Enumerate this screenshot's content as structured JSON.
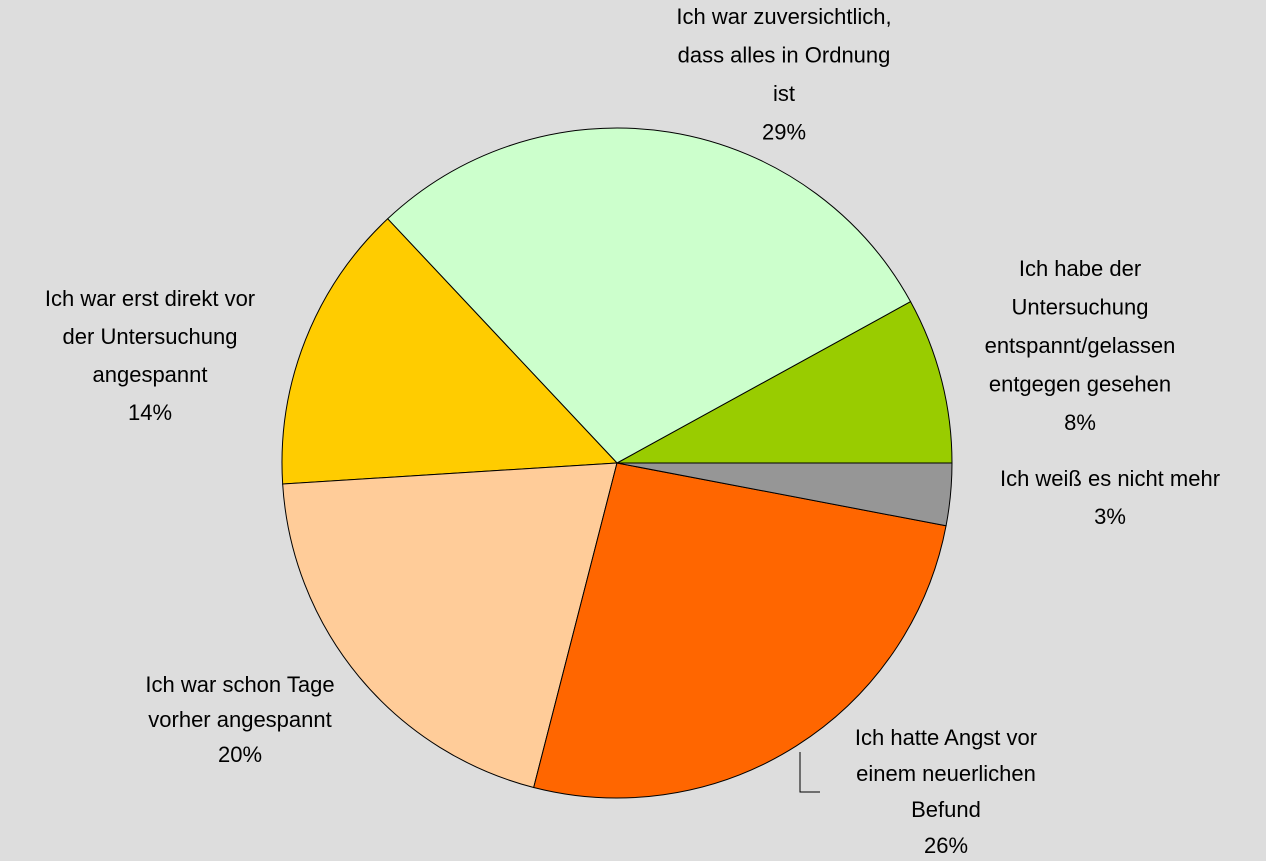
{
  "chart_data": {
    "type": "pie",
    "categories": [
      [
        "Ich habe der",
        "Untersuchung",
        "entspannt/gelassen",
        "entgegen gesehen"
      ],
      [
        "Ich war zuversichtlich,",
        "dass alles in Ordnung",
        "ist"
      ],
      [
        "Ich war erst direkt vor",
        "der Untersuchung",
        "angespannt"
      ],
      [
        "Ich war schon Tage",
        "vorher angespannt"
      ],
      [
        "Ich hatte Angst vor",
        "einem neuerlichen",
        "Befund"
      ],
      [
        "Ich weiß es nicht mehr"
      ]
    ],
    "values": [
      8,
      29,
      14,
      20,
      26,
      3
    ],
    "value_labels": [
      "8%",
      "29%",
      "14%",
      "20%",
      "26%",
      "3%"
    ],
    "colors": [
      "#99cc00",
      "#ccffcc",
      "#ffcc00",
      "#ffcc99",
      "#ff6600",
      "#969696"
    ]
  }
}
